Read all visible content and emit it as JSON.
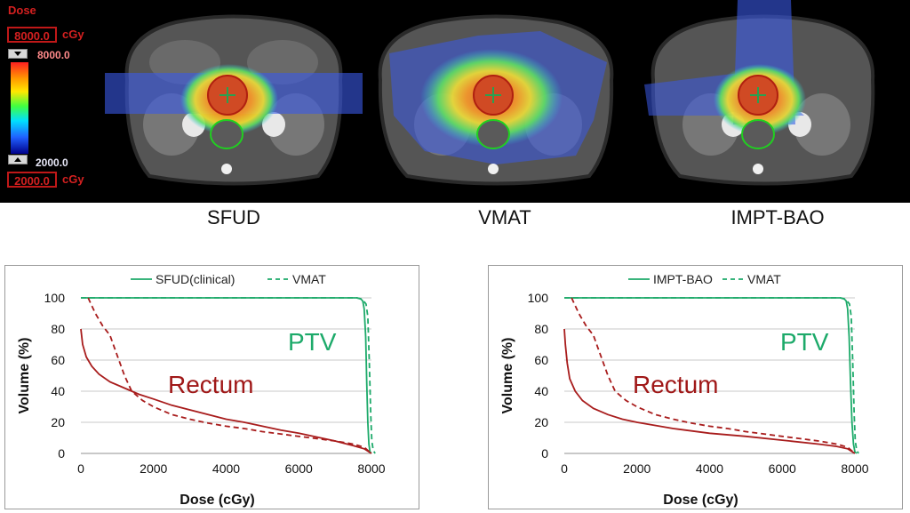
{
  "dose_scale": {
    "title": "Dose",
    "max_box": "8000.0",
    "max_unit": "cGy",
    "max_label": "8000.0",
    "min_label": "2000.0",
    "min_box": "2000.0",
    "min_unit": "cGy"
  },
  "plans": [
    {
      "label": "SFUD"
    },
    {
      "label": "VMAT"
    },
    {
      "label": "IMPT-BAO"
    }
  ],
  "chart_data": [
    {
      "type": "line",
      "xlabel": "Dose (cGy)",
      "ylabel": "Volume (%)",
      "xlim": [
        0,
        8000
      ],
      "ylim": [
        0,
        100
      ],
      "xticks": [
        0,
        2000,
        4000,
        6000,
        8000
      ],
      "yticks": [
        0,
        20,
        40,
        60,
        80,
        100
      ],
      "grid": true,
      "legend": {
        "position": "top",
        "entries": [
          "SFUD(clinical)",
          "VMAT"
        ]
      },
      "annotations": [
        {
          "text": "PTV",
          "color": "#1daa6a"
        },
        {
          "text": "Rectum",
          "color": "#a01818"
        }
      ],
      "series": [
        {
          "name": "SFUD(clinical)",
          "structure": "PTV",
          "style": "solid",
          "color": "#1daa6a",
          "x": [
            0,
            7600,
            7700,
            7760,
            7800,
            7840,
            7870,
            7900,
            7930,
            7960,
            8000
          ],
          "y": [
            100,
            100,
            99.5,
            98,
            93,
            75,
            45,
            20,
            6,
            1,
            0
          ]
        },
        {
          "name": "VMAT",
          "structure": "PTV",
          "style": "dashed",
          "color": "#1daa6a",
          "x": [
            0,
            7600,
            7750,
            7850,
            7900,
            7940,
            7980,
            8010,
            8050,
            8100
          ],
          "y": [
            100,
            100,
            99,
            96,
            88,
            60,
            25,
            8,
            2,
            0
          ]
        },
        {
          "name": "SFUD(clinical)",
          "structure": "Rectum",
          "style": "solid",
          "color": "#a81c1c",
          "x": [
            0,
            50,
            150,
            300,
            500,
            800,
            1200,
            1600,
            2000,
            2500,
            3000,
            3500,
            4000,
            4500,
            5000,
            5500,
            6000,
            6500,
            7000,
            7500,
            7800,
            7900,
            8000
          ],
          "y": [
            80,
            70,
            62,
            56,
            51,
            46,
            42,
            38,
            35,
            31,
            28,
            25,
            22,
            20,
            17.5,
            15,
            13,
            10.5,
            8,
            5,
            3,
            1.5,
            0
          ]
        },
        {
          "name": "VMAT",
          "structure": "Rectum",
          "style": "dashed",
          "color": "#a81c1c",
          "x": [
            200,
            400,
            600,
            800,
            1000,
            1200,
            1400,
            1700,
            2000,
            2500,
            3000,
            3500,
            4000,
            4500,
            5000,
            5500,
            6000,
            6500,
            7000,
            7500,
            7800,
            7900,
            8000
          ],
          "y": [
            100,
            90,
            82,
            76,
            63,
            50,
            40,
            34,
            30,
            25,
            22,
            19.5,
            17.5,
            16,
            14,
            12.5,
            11,
            9.5,
            8,
            6,
            4,
            2,
            0
          ]
        }
      ]
    },
    {
      "type": "line",
      "xlabel": "Dose (cGy)",
      "ylabel": "Volume (%)",
      "xlim": [
        0,
        8000
      ],
      "ylim": [
        0,
        100
      ],
      "xticks": [
        0,
        2000,
        4000,
        6000,
        8000
      ],
      "yticks": [
        0,
        20,
        40,
        60,
        80,
        100
      ],
      "grid": true,
      "legend": {
        "position": "top",
        "entries": [
          "IMPT-BAO",
          "VMAT"
        ]
      },
      "annotations": [
        {
          "text": "PTV",
          "color": "#1daa6a"
        },
        {
          "text": "Rectum",
          "color": "#a01818"
        }
      ],
      "series": [
        {
          "name": "IMPT-BAO",
          "structure": "PTV",
          "style": "solid",
          "color": "#1daa6a",
          "x": [
            0,
            7600,
            7700,
            7760,
            7800,
            7840,
            7880,
            7920,
            7960,
            8000,
            8050
          ],
          "y": [
            100,
            100,
            99.5,
            98,
            93,
            75,
            45,
            20,
            6,
            1,
            0
          ]
        },
        {
          "name": "VMAT",
          "structure": "PTV",
          "style": "dashed",
          "color": "#1daa6a",
          "x": [
            0,
            7600,
            7750,
            7850,
            7900,
            7940,
            7980,
            8010,
            8050,
            8100
          ],
          "y": [
            100,
            100,
            99,
            96,
            88,
            60,
            25,
            8,
            2,
            0
          ]
        },
        {
          "name": "IMPT-BAO",
          "structure": "Rectum",
          "style": "solid",
          "color": "#a81c1c",
          "x": [
            0,
            30,
            80,
            150,
            300,
            500,
            800,
            1200,
            1600,
            2000,
            2500,
            3000,
            4000,
            5000,
            6000,
            7000,
            7500,
            7800,
            7900,
            8000
          ],
          "y": [
            80,
            70,
            58,
            48,
            40,
            34,
            29,
            25,
            22,
            20,
            18,
            16,
            13,
            11,
            8.5,
            6,
            4.5,
            3,
            1.5,
            0
          ]
        },
        {
          "name": "VMAT",
          "structure": "Rectum",
          "style": "dashed",
          "color": "#a81c1c",
          "x": [
            200,
            400,
            600,
            800,
            1000,
            1200,
            1400,
            1700,
            2000,
            2500,
            3000,
            3500,
            4000,
            4500,
            5000,
            5500,
            6000,
            6500,
            7000,
            7500,
            7800,
            7900,
            8000
          ],
          "y": [
            100,
            90,
            82,
            76,
            63,
            50,
            40,
            34,
            30,
            25,
            22,
            19.5,
            17.5,
            16,
            14,
            12.5,
            11,
            9.5,
            8,
            6,
            4,
            2,
            0
          ]
        }
      ]
    }
  ]
}
